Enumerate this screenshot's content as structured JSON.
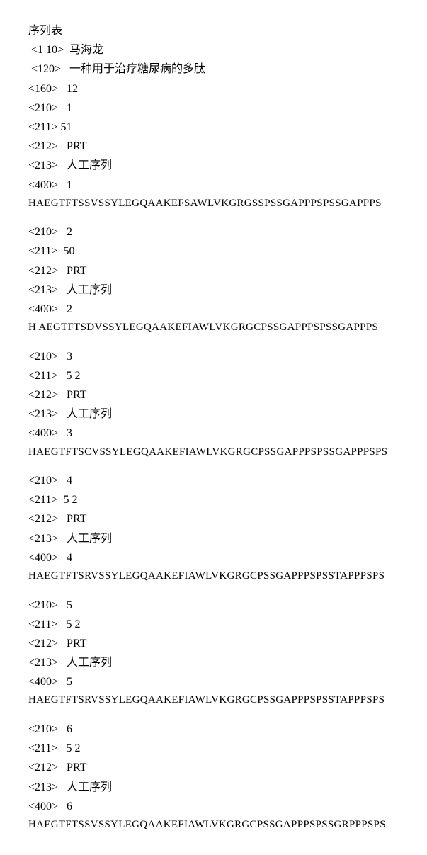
{
  "title": "序列表",
  "headers": {
    "h110_tag": "<1 10>",
    "h110_val": "马海龙",
    "h120_tag": "<120>",
    "h120_val": "一种用于治疗糖尿病的多肽",
    "h160_tag": "<160>",
    "h160_val": "12"
  },
  "entries": [
    {
      "t210": "<210>",
      "v210": "1",
      "t211": "<211>",
      "v211": "51",
      "sep211": "",
      "t212": "<212>",
      "v212": "PRT",
      "t213": "<213>",
      "v213": "人工序列",
      "t400": "<400>",
      "v400": "1",
      "seq": "HAEGTFTSSVSSYLEGQAAKEFSAWLVKGRGSSPSSGAPPPSPSSGAPPPS"
    },
    {
      "t210": "<210>",
      "v210": "2",
      "t211": "<211>",
      "v211": "50",
      "sep211": "  ",
      "t212": "<212>",
      "v212": "PRT",
      "t213": "<213>",
      "v213": "人工序列",
      "t400": "<400>",
      "v400": "2",
      "seq": "H AEGTFTSDVSSYLEGQAAKEFIAWLVKGRGCPSSGAPPPSPSSGAPPPS"
    },
    {
      "t210": "<210>",
      "v210": "3",
      "t211": "<211>",
      "v211": "5 2",
      "sep211": "   ",
      "t212": "<212>",
      "v212": "PRT",
      "t213": "<213>",
      "v213": "人工序列",
      "t400": "<400>",
      "v400": "3",
      "seq": "HAEGTFTSCVSSYLEGQAAKEFIAWLVKGRGCPSSGAPPPSPSSGAPPPSPS"
    },
    {
      "t210": "<210>",
      "v210": "4",
      "t211": "<211>",
      "v211": "5 2",
      "sep211": "  ",
      "t212": "<212>",
      "v212": "PRT",
      "t213": "<213>",
      "v213": "人工序列",
      "t400": "<400>",
      "v400": "4",
      "seq": "HAEGTFTSRVSSYLEGQAAKEFIAWLVKGRGCPSSGAPPPSPSSTAPPPSPS"
    },
    {
      "t210": "<210>",
      "v210": "5",
      "t211": "<211>",
      "v211": "5 2",
      "sep211": "   ",
      "t212": "<212>",
      "v212": "PRT",
      "t213": "<213>",
      "v213": "人工序列",
      "t400": "<400>",
      "v400": "5",
      "seq": "HAEGTFTSRVSSYLEGQAAKEFIAWLVKGRGCPSSGAPPPSPSSTAPPPSPS"
    },
    {
      "t210": "<210>",
      "v210": "6",
      "t211": "<211>",
      "v211": "5 2",
      "sep211": "   ",
      "t212": "<212>",
      "v212": "PRT",
      "t213": "<213>",
      "v213": "人工序列",
      "t400": "<400>",
      "v400": "6",
      "seq": "HAEGTFTSSVSSYLEGQAAKEFIAWLVKGRGCPSSGAPPPSPSSGRPPPSPS"
    }
  ]
}
